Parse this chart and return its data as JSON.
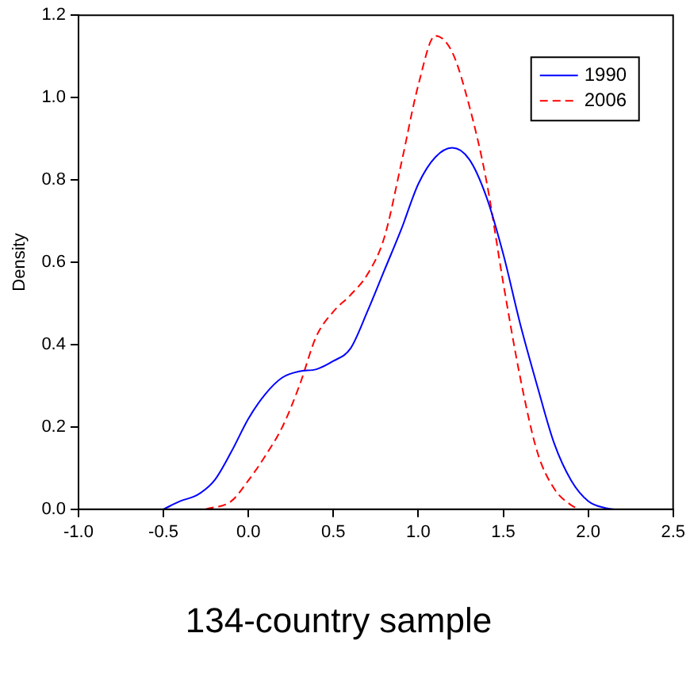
{
  "chart_data": {
    "type": "line",
    "title": "134-country sample",
    "ylabel": "Density",
    "xlim": [
      -1,
      2.5
    ],
    "xticks": [
      {
        "value": -1,
        "label": "-1.0"
      },
      {
        "value": -0.5,
        "label": "-0.5"
      },
      {
        "value": 0,
        "label": "0.0"
      },
      {
        "value": 0.5,
        "label": "0.5"
      },
      {
        "value": 1,
        "label": "1.0"
      },
      {
        "value": 1.5,
        "label": "1.5"
      },
      {
        "value": 2,
        "label": "2.0"
      },
      {
        "value": 2.5,
        "label": "2.5"
      }
    ],
    "ylim": [
      0,
      1.2
    ],
    "yticks": [
      {
        "value": 0,
        "label": "0.0"
      },
      {
        "value": 0.2,
        "label": "0.2"
      },
      {
        "value": 0.4,
        "label": "0.4"
      },
      {
        "value": 0.6,
        "label": "0.6"
      },
      {
        "value": 0.8,
        "label": "0.8"
      },
      {
        "value": 1,
        "label": "1.0"
      },
      {
        "value": 1.2,
        "label": "1.2"
      }
    ],
    "grid": false,
    "legend": "top right",
    "marker": "none",
    "series": [
      {
        "name": "1990",
        "color": "#0000ff",
        "line_style": "solid",
        "x": [
          -0.5,
          -0.4,
          -0.3,
          -0.2,
          -0.1,
          0,
          0.1,
          0.2,
          0.3,
          0.4,
          0.5,
          0.6,
          0.7,
          0.8,
          0.9,
          1,
          1.1,
          1.2,
          1.3,
          1.4,
          1.5,
          1.6,
          1.7,
          1.8,
          1.9,
          2,
          2.1,
          2.15
        ],
        "values": [
          0,
          0.02,
          0.035,
          0.07,
          0.14,
          0.22,
          0.28,
          0.32,
          0.335,
          0.34,
          0.36,
          0.39,
          0.48,
          0.58,
          0.68,
          0.79,
          0.855,
          0.878,
          0.85,
          0.76,
          0.62,
          0.45,
          0.3,
          0.16,
          0.07,
          0.02,
          0.003,
          0
        ]
      },
      {
        "name": "2006",
        "color": "#ff0000",
        "line_style": "dashed",
        "x": [
          -0.25,
          -0.1,
          0,
          0.1,
          0.2,
          0.3,
          0.4,
          0.5,
          0.6,
          0.7,
          0.8,
          0.9,
          1,
          1.1,
          1.2,
          1.3,
          1.4,
          1.5,
          1.6,
          1.7,
          1.8,
          1.9,
          1.95
        ],
        "values": [
          0,
          0.02,
          0.07,
          0.13,
          0.2,
          0.3,
          0.42,
          0.48,
          0.52,
          0.57,
          0.66,
          0.84,
          1.03,
          1.15,
          1.11,
          0.98,
          0.8,
          0.55,
          0.32,
          0.14,
          0.05,
          0.01,
          0
        ]
      }
    ]
  }
}
